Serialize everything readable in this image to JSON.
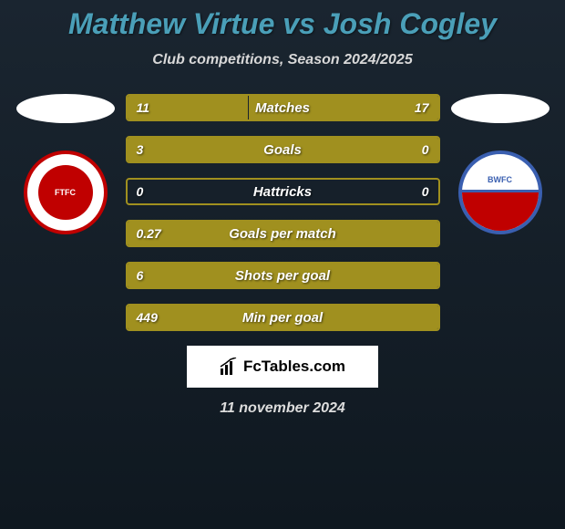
{
  "title": "Matthew Virtue vs Josh Cogley",
  "subtitle": "Club competitions, Season 2024/2025",
  "colors": {
    "background_top": "#1a2530",
    "background_bottom": "#0f1820",
    "title_color": "#4a9fb8",
    "bar_color": "#a0901f",
    "text_color": "#ffffff"
  },
  "left_team": {
    "badge_label": "FTFC",
    "badge_colors": {
      "outer": "#ffffff",
      "ring": "#c00000",
      "inner": "#c00000"
    }
  },
  "right_team": {
    "badge_label": "BWFC",
    "badge_colors": {
      "outer": "#ffffff",
      "ring": "#3a5fb0",
      "stripe": "#c00000"
    }
  },
  "stats": [
    {
      "label": "Matches",
      "left_val": "11",
      "right_val": "17",
      "left_pct": 39,
      "right_pct": 61
    },
    {
      "label": "Goals",
      "left_val": "3",
      "right_val": "0",
      "left_pct": 100,
      "right_pct": 0
    },
    {
      "label": "Hattricks",
      "left_val": "0",
      "right_val": "0",
      "left_pct": 0,
      "right_pct": 0
    },
    {
      "label": "Goals per match",
      "left_val": "0.27",
      "right_val": "",
      "left_pct": 100,
      "right_pct": 0
    },
    {
      "label": "Shots per goal",
      "left_val": "6",
      "right_val": "",
      "left_pct": 100,
      "right_pct": 0
    },
    {
      "label": "Min per goal",
      "left_val": "449",
      "right_val": "",
      "left_pct": 100,
      "right_pct": 0
    }
  ],
  "footer": {
    "brand": "FcTables.com",
    "date": "11 november 2024"
  }
}
